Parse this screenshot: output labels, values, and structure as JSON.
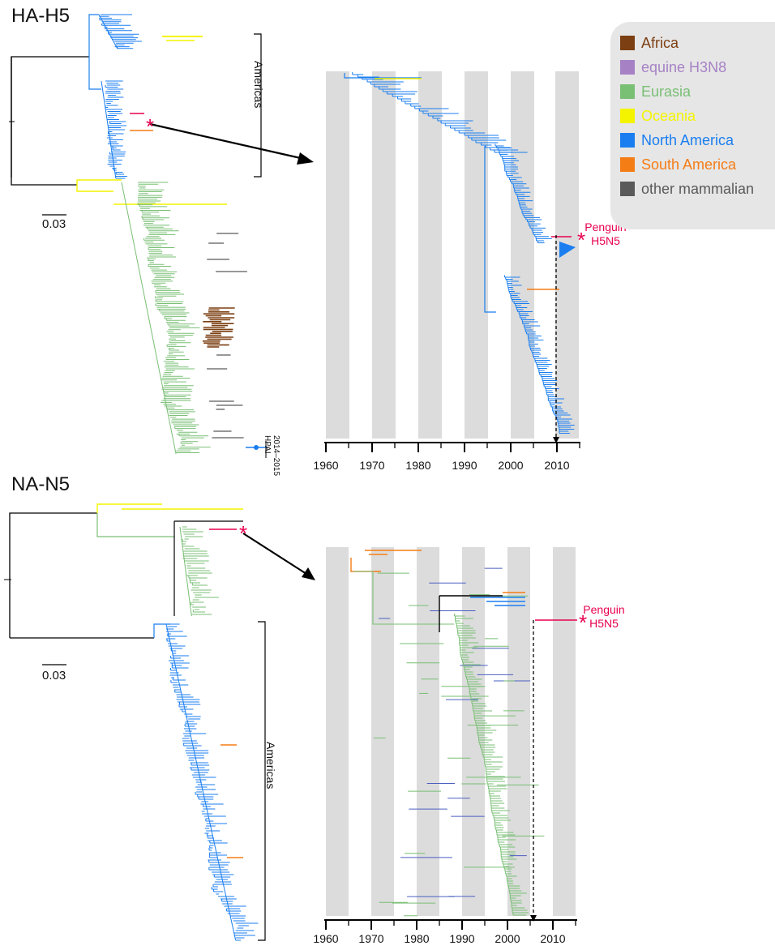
{
  "panels": {
    "top": {
      "title": "HA-H5",
      "scale_bar": "0.03",
      "clade_label": "Americas",
      "hpai_label_line1": "2014–2015",
      "hpai_label_line2": "HPAI",
      "callout_line1": "Penguin",
      "callout_line2": "H5N5",
      "star": "*",
      "axis_years": [
        "1960",
        "1970",
        "1980",
        "1990",
        "2000",
        "2010"
      ]
    },
    "bottom": {
      "title": "NA-N5",
      "scale_bar": "0.03",
      "clade_label": "Americas",
      "callout_line1": "Penguin",
      "callout_line2": "H5N5",
      "star": "*",
      "axis_years": [
        "1960",
        "1970",
        "1980",
        "1990",
        "2000",
        "2010"
      ]
    }
  },
  "legend": {
    "items": [
      {
        "label": "Africa",
        "color": "#7b3f12"
      },
      {
        "label": "equine H3N8",
        "color": "#a682c5"
      },
      {
        "label": "Eurasia",
        "color": "#79bf74"
      },
      {
        "label": "Oceania",
        "color": "#f4f400"
      },
      {
        "label": "North America",
        "color": "#1a7ef0"
      },
      {
        "label": "South America",
        "color": "#f57d15"
      },
      {
        "label": "other mammalian",
        "color": "#5a5a5a"
      }
    ]
  },
  "colors": {
    "north_america": "#1a7ef0",
    "eurasia": "#79bf74",
    "oceania": "#f4f400",
    "africa": "#7b3f12",
    "south_america": "#f57d15",
    "mammalian": "#5a5a5a",
    "hpd_bar": "#4a5fc1",
    "penguin": "#e8004f",
    "band": "#dcdcdc"
  }
}
